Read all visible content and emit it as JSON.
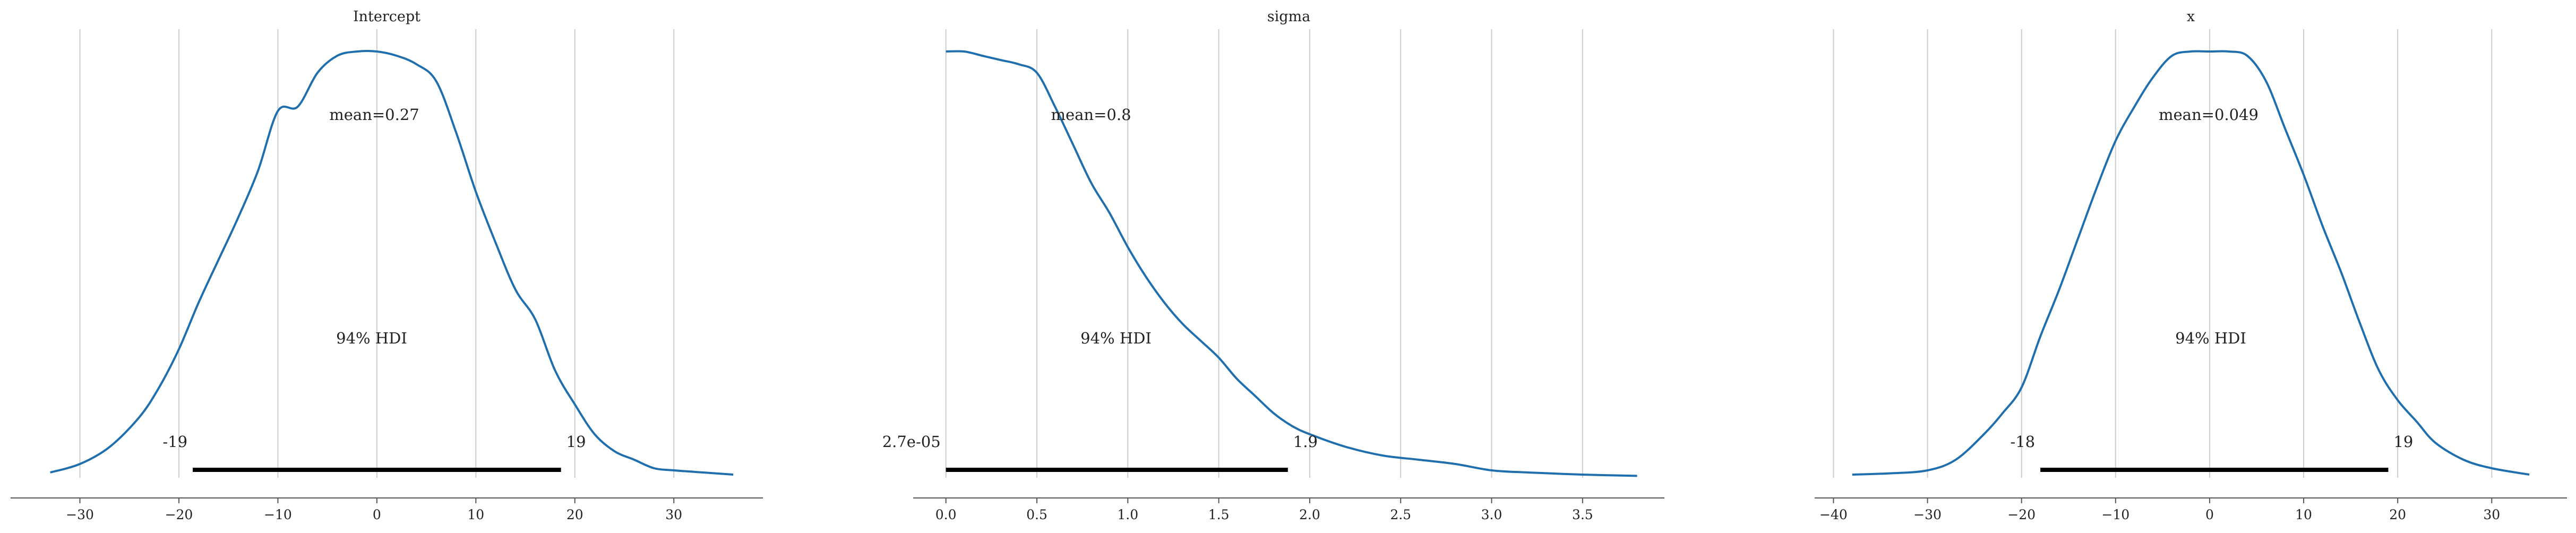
{
  "colors": {
    "density": "#1f6fae",
    "hdi": "#000000",
    "grid": "#cccccc",
    "axis": "#555555"
  },
  "chart_data": [
    {
      "type": "area",
      "title": "Intercept",
      "mean_label": "mean=0.27",
      "hdi_label": "94% HDI",
      "hdi": [
        -18.6,
        18.6
      ],
      "hdi_labels": [
        "-19",
        "19"
      ],
      "xlim": [
        -37,
        39
      ],
      "xticks": [
        -30,
        -20,
        -10,
        0,
        10,
        20,
        30
      ],
      "xtick_labels": [
        "−30",
        "−20",
        "−10",
        "0",
        "10",
        "20",
        "30"
      ],
      "grid": true,
      "x": [
        -33,
        -30,
        -27,
        -24,
        -22,
        -20,
        -18,
        -16,
        -14,
        -12,
        -10,
        -8,
        -6,
        -4,
        -2,
        0,
        2,
        4,
        6,
        8,
        10,
        12,
        14,
        16,
        18,
        20,
        22,
        24,
        26,
        28,
        30,
        33,
        36
      ],
      "density": [
        0.01,
        0.03,
        0.07,
        0.14,
        0.21,
        0.3,
        0.41,
        0.51,
        0.61,
        0.72,
        0.86,
        0.87,
        0.95,
        0.99,
        1.0,
        1.0,
        0.99,
        0.97,
        0.93,
        0.81,
        0.67,
        0.55,
        0.44,
        0.37,
        0.25,
        0.17,
        0.1,
        0.06,
        0.04,
        0.02,
        0.015,
        0.01,
        0.005
      ]
    },
    {
      "type": "area",
      "title": "sigma",
      "mean_label": "mean=0.8",
      "hdi_label": "94% HDI",
      "hdi": [
        2.73e-05,
        1.88
      ],
      "hdi_labels": [
        "2.7e-05",
        "1.9"
      ],
      "xlim": [
        -0.18,
        3.95
      ],
      "xticks": [
        0,
        0.5,
        1,
        1.5,
        2,
        2.5,
        3,
        3.5
      ],
      "xtick_labels": [
        "0.0",
        "0.5",
        "1.0",
        "1.5",
        "2.0",
        "2.5",
        "3.0",
        "3.5"
      ],
      "grid": true,
      "x": [
        0,
        0.1,
        0.2,
        0.3,
        0.4,
        0.5,
        0.6,
        0.7,
        0.8,
        0.9,
        1.0,
        1.1,
        1.2,
        1.3,
        1.4,
        1.5,
        1.6,
        1.7,
        1.8,
        1.9,
        2.0,
        2.2,
        2.4,
        2.6,
        2.8,
        3.0,
        3.2,
        3.5,
        3.8
      ],
      "density": [
        1.0,
        1.0,
        0.99,
        0.98,
        0.97,
        0.95,
        0.87,
        0.78,
        0.69,
        0.62,
        0.54,
        0.47,
        0.41,
        0.36,
        0.32,
        0.28,
        0.23,
        0.19,
        0.15,
        0.12,
        0.1,
        0.07,
        0.05,
        0.04,
        0.03,
        0.015,
        0.01,
        0.005,
        0.002
      ]
    },
    {
      "type": "area",
      "title": "x",
      "mean_label": "mean=0.049",
      "hdi_label": "94% HDI",
      "hdi": [
        -18,
        19
      ],
      "hdi_labels": [
        "-18",
        "19"
      ],
      "xlim": [
        -42,
        38
      ],
      "xticks": [
        -40,
        -30,
        -20,
        -10,
        0,
        10,
        20,
        30
      ],
      "xtick_labels": [
        "−40",
        "−30",
        "−20",
        "−10",
        "0",
        "10",
        "20",
        "30"
      ],
      "grid": true,
      "x": [
        -38,
        -34,
        -30,
        -27,
        -24,
        -22,
        -20,
        -18,
        -16,
        -14,
        -12,
        -10,
        -8,
        -6,
        -4,
        -2,
        0,
        2,
        4,
        6,
        8,
        10,
        12,
        14,
        16,
        18,
        20,
        22,
        24,
        27,
        30,
        34
      ],
      "density": [
        0.005,
        0.008,
        0.015,
        0.04,
        0.1,
        0.15,
        0.21,
        0.33,
        0.44,
        0.56,
        0.68,
        0.79,
        0.87,
        0.94,
        0.99,
        1.0,
        1.0,
        1.0,
        0.99,
        0.93,
        0.82,
        0.71,
        0.59,
        0.48,
        0.36,
        0.25,
        0.18,
        0.13,
        0.08,
        0.04,
        0.02,
        0.005
      ]
    }
  ]
}
